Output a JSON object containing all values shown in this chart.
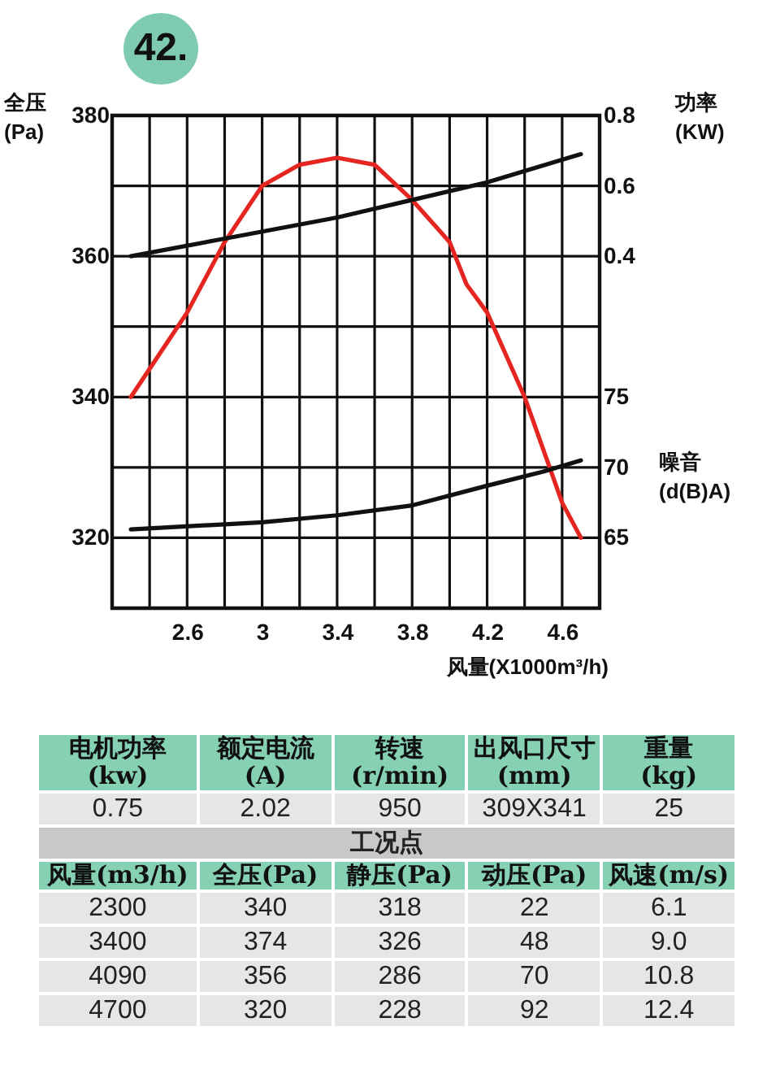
{
  "chart_data": [
    {
      "type": "line",
      "title": "42.",
      "xlabel": "风量(X1000m³/h)",
      "ylabel": "全压 (Pa)",
      "y2label": "功率 (KW)",
      "y3label": "噪音 (d(B)A)",
      "xlim": [
        2.2,
        4.8
      ],
      "xticks": [
        {
          "value": 2.4,
          "label": null
        },
        2.6,
        {
          "value": 2.8,
          "label": null
        },
        3,
        {
          "value": 3.2,
          "label": null
        },
        3.4,
        {
          "value": 3.6,
          "label": null
        },
        3.8,
        {
          "value": 4.0,
          "label": null
        },
        4.2,
        {
          "value": 4.4,
          "label": null
        },
        4.6
      ],
      "ylim": [
        310,
        380
      ],
      "yticks": [
        320,
        {
          "value": 330,
          "label": null
        },
        340,
        {
          "value": 350,
          "label": null
        },
        360,
        {
          "value": 370,
          "label": null
        },
        380
      ],
      "y2lim": [
        -0.6,
        0.8
      ],
      "y2ticks": [
        0.4,
        0.6,
        0.8
      ],
      "y3lim": [
        60,
        95
      ],
      "y3ticks": [
        65,
        70,
        75
      ],
      "grid": true,
      "series": [
        {
          "color": "#e52620",
          "x": [
            2.3,
            2.5,
            2.6,
            2.8,
            3.0,
            3.2,
            3.4,
            3.6,
            3.8,
            4.0,
            4.09,
            4.2,
            4.4,
            4.6,
            4.7
          ],
          "values": [
            340,
            348,
            352,
            362,
            370,
            373,
            374,
            373,
            368,
            362,
            356,
            352,
            340,
            325,
            320
          ]
        },
        {
          "color": "#111111",
          "axis": "y2",
          "x": [
            2.3,
            2.8,
            3.4,
            3.8,
            4.2,
            4.7
          ],
          "values": [
            0.4,
            0.45,
            0.51,
            0.56,
            0.61,
            0.69
          ]
        },
        {
          "color": "#111111",
          "axis": "y3",
          "x": [
            2.3,
            3.0,
            3.4,
            3.8,
            4.2,
            4.5,
            4.7
          ],
          "values": [
            65.6,
            66.1,
            66.6,
            67.3,
            68.7,
            69.7,
            70.5
          ]
        }
      ]
    },
    {
      "type": "other",
      "annotations": [
        "电机功率\n(kw)",
        "额定电流\n(A)",
        "转速\n(r/min)",
        "出风口尺寸(mm)",
        "重量\n(kg)",
        "0.75",
        "2.02",
        "950",
        "309X341",
        "25",
        "工况点",
        "风量(m3/h)",
        "全压(Pa)",
        "静压(Pa)",
        "动压(Pa)",
        "风速(m/s)",
        "2300",
        "340",
        "318",
        "22",
        "6.1",
        "3400",
        "374",
        "326",
        "48",
        "9.0",
        "4090",
        "356",
        "286",
        "70",
        "10.8",
        "4700",
        "320",
        "228",
        "92",
        "12.4"
      ]
    }
  ]
}
